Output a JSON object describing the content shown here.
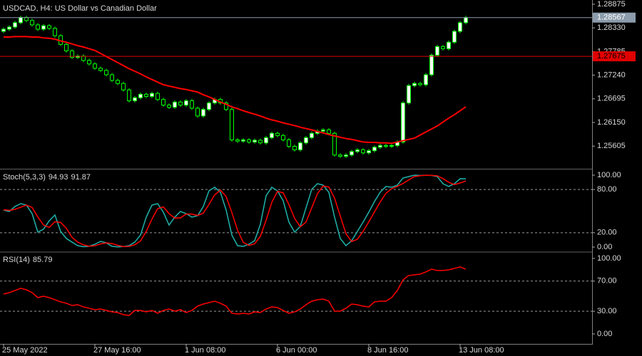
{
  "chart_data": [
    {
      "type": "candlestick",
      "title": "USDCAD, H4:  US Dollar vs Canadian Dollar",
      "categories": [
        "25 May 2022",
        null,
        null,
        null,
        null,
        null,
        null,
        null,
        null,
        null,
        null,
        null,
        null,
        null,
        null,
        null,
        "27 May 16:00",
        null,
        null,
        null,
        null,
        null,
        null,
        null,
        null,
        null,
        null,
        null,
        null,
        null,
        null,
        null,
        "1 Jun 08:00",
        null,
        null,
        null,
        null,
        null,
        null,
        null,
        null,
        null,
        null,
        null,
        null,
        null,
        null,
        null,
        "6 Jun 00:00",
        null,
        null,
        null,
        null,
        null,
        null,
        null,
        null,
        null,
        null,
        null,
        null,
        null,
        null,
        null,
        "8 Jun 16:00",
        null,
        null,
        null,
        null,
        null,
        null,
        null,
        null,
        null,
        null,
        null,
        null,
        null,
        null,
        null,
        "13 Jun 08:00",
        null
      ],
      "open": [
        1.2825,
        1.283,
        1.2835,
        1.2845,
        1.2857,
        1.285,
        1.284,
        1.283,
        1.2838,
        1.2832,
        1.2815,
        1.2795,
        1.278,
        1.2765,
        1.2768,
        1.2758,
        1.275,
        1.274,
        1.2735,
        1.2725,
        1.2712,
        1.2705,
        1.269,
        1.2665,
        1.2672,
        1.268,
        1.2675,
        1.2682,
        1.2668,
        1.2655,
        1.265,
        1.2662,
        1.2655,
        1.2665,
        1.2648,
        1.263,
        1.2645,
        1.266,
        1.2668,
        1.266,
        1.2645,
        1.2575,
        1.2572,
        1.2575,
        1.257,
        1.2574,
        1.2568,
        1.258,
        1.259,
        1.2585,
        1.2575,
        1.256,
        1.2552,
        1.2568,
        1.258,
        1.259,
        1.2595,
        1.2598,
        1.259,
        1.254,
        1.2537,
        1.254,
        1.2548,
        1.2552,
        1.2545,
        1.255,
        1.2558,
        1.2562,
        1.256,
        1.2562,
        1.257,
        1.266,
        1.27,
        1.2705,
        1.2702,
        1.2725,
        1.277,
        1.279,
        1.2785,
        1.28,
        1.2825,
        1.2845
      ],
      "high": [
        1.2834,
        1.2839,
        1.2849,
        1.2861,
        1.2861,
        1.2854,
        1.2844,
        1.2842,
        1.2842,
        1.2836,
        1.2819,
        1.2799,
        1.2784,
        1.2772,
        1.2772,
        1.2762,
        1.2754,
        1.2744,
        1.2739,
        1.2729,
        1.2716,
        1.2709,
        1.2694,
        1.2676,
        1.2684,
        1.2684,
        1.2686,
        1.2686,
        1.2672,
        1.2659,
        1.2666,
        1.2666,
        1.2669,
        1.2669,
        1.2652,
        1.2649,
        1.2664,
        1.2672,
        1.2672,
        1.2664,
        1.2649,
        1.2579,
        1.2579,
        1.2579,
        1.2578,
        1.2578,
        1.2584,
        1.2594,
        1.2594,
        1.2589,
        1.2579,
        1.2564,
        1.2572,
        1.2584,
        1.2594,
        1.2599,
        1.2602,
        1.2602,
        1.2594,
        1.2544,
        1.2544,
        1.2552,
        1.2556,
        1.2556,
        1.2554,
        1.2562,
        1.2566,
        1.2566,
        1.2566,
        1.2574,
        1.2664,
        1.2704,
        1.2709,
        1.2709,
        1.2729,
        1.2774,
        1.2794,
        1.2794,
        1.2804,
        1.2829,
        1.2849,
        1.2861
      ],
      "low": [
        1.2821,
        1.2826,
        1.2831,
        1.2841,
        1.2846,
        1.2836,
        1.2826,
        1.2826,
        1.2828,
        1.2811,
        1.2791,
        1.2776,
        1.2761,
        1.2761,
        1.2754,
        1.2746,
        1.2736,
        1.2731,
        1.2721,
        1.2708,
        1.2701,
        1.2686,
        1.2661,
        1.2661,
        1.2668,
        1.2671,
        1.2671,
        1.2664,
        1.2651,
        1.2646,
        1.2646,
        1.2651,
        1.2651,
        1.2644,
        1.2626,
        1.2626,
        1.2641,
        1.2656,
        1.2656,
        1.2641,
        1.2571,
        1.2568,
        1.2568,
        1.2566,
        1.2566,
        1.2564,
        1.2564,
        1.2576,
        1.2581,
        1.2571,
        1.2556,
        1.2548,
        1.2548,
        1.2564,
        1.2576,
        1.2586,
        1.2591,
        1.2586,
        1.2536,
        1.2533,
        1.2533,
        1.2536,
        1.2544,
        1.2541,
        1.2541,
        1.2546,
        1.2554,
        1.2556,
        1.2556,
        1.2558,
        1.2566,
        1.2656,
        1.2696,
        1.2698,
        1.2698,
        1.2721,
        1.2766,
        1.2781,
        1.2781,
        1.2796,
        1.2821,
        1.2841
      ],
      "close": [
        1.283,
        1.2835,
        1.2845,
        1.2857,
        1.285,
        1.284,
        1.283,
        1.2838,
        1.2832,
        1.2815,
        1.2795,
        1.278,
        1.2765,
        1.2768,
        1.2758,
        1.275,
        1.274,
        1.2735,
        1.2725,
        1.2712,
        1.2705,
        1.269,
        1.2665,
        1.2672,
        1.268,
        1.2675,
        1.2682,
        1.2668,
        1.2655,
        1.265,
        1.2662,
        1.2655,
        1.2665,
        1.2648,
        1.263,
        1.2645,
        1.266,
        1.2668,
        1.266,
        1.2645,
        1.2575,
        1.2572,
        1.2575,
        1.257,
        1.2574,
        1.2568,
        1.258,
        1.259,
        1.2585,
        1.2575,
        1.256,
        1.2552,
        1.2568,
        1.258,
        1.259,
        1.2595,
        1.2598,
        1.259,
        1.254,
        1.2537,
        1.254,
        1.2548,
        1.2552,
        1.2545,
        1.255,
        1.2558,
        1.2562,
        1.256,
        1.2562,
        1.257,
        1.266,
        1.27,
        1.2705,
        1.2702,
        1.2725,
        1.277,
        1.279,
        1.2785,
        1.28,
        1.2825,
        1.2845,
        1.28567
      ],
      "up_color": "#ffffff",
      "down_color": "#000000",
      "wick_color": "#00ff00",
      "last_price_color": "#8c9cac",
      "series": [
        {
          "color": "#ff0000",
          "values": [
            1.2812,
            1.2812,
            1.2813,
            1.2813,
            1.2813,
            1.2812,
            1.2812,
            1.281,
            1.2809,
            1.2807,
            1.2803,
            1.28,
            1.2796,
            1.2792,
            1.2789,
            1.2785,
            1.2781,
            1.2774,
            1.2767,
            1.276,
            1.2753,
            1.2746,
            1.2739,
            1.2733,
            1.2727,
            1.272,
            1.2714,
            1.2708,
            1.2702,
            1.2699,
            1.2696,
            1.2693,
            1.2691,
            1.2688,
            1.2685,
            1.2679,
            1.2674,
            1.2668,
            1.2662,
            1.2657,
            1.2651,
            1.2647,
            1.2642,
            1.2638,
            1.2634,
            1.263,
            1.2625,
            1.2621,
            1.2618,
            1.2614,
            1.2611,
            1.2608,
            1.2604,
            1.2601,
            1.2598,
            1.2594,
            1.2591,
            1.2587,
            1.2584,
            1.2581,
            1.2578,
            1.2576,
            1.2573,
            1.257,
            1.2569,
            1.2569,
            1.2568,
            1.2568,
            1.2567,
            1.257,
            1.2573,
            1.2576,
            1.2579,
            1.2586,
            1.2593,
            1.26,
            1.2607,
            1.2616,
            1.2625,
            1.2633,
            1.2642,
            1.2651
          ]
        }
      ],
      "level_lines": [
        {
          "value": 1.27675,
          "color": "#e00000"
        }
      ],
      "ylim": [
        1.251,
        1.2894
      ],
      "yticks": [
        1.25605,
        {
          "value": 1.2615,
          "label": "1.26150"
        },
        1.26695,
        {
          "value": 1.2724,
          "label": "1.27240"
        },
        1.27785,
        {
          "value": 1.2833,
          "label": "1.28330"
        },
        1.28875
      ]
    },
    {
      "type": "line",
      "title": "Stoch(5,3,3)",
      "series": [
        {
          "color": "#20b2aa",
          "values": [
            51.5,
            49.5,
            56.4,
            60.4,
            58.4,
            46.5,
            20.8,
            24.8,
            36.6,
            44.6,
            21.8,
            11.9,
            6.9,
            2.0,
            0.5,
            1.2,
            4.0,
            7.9,
            5.9,
            1.0,
            0.3,
            0.8,
            2.0,
            6.9,
            16.8,
            41.6,
            58.4,
            60.4,
            48.5,
            30.7,
            41.6,
            49.5,
            46.5,
            41.6,
            43.6,
            56.4,
            78.2,
            83.2,
            76.2,
            51.5,
            16.8,
            2.0,
            1.0,
            4.0,
            8.9,
            31.7,
            71.3,
            83.2,
            78.2,
            64.4,
            34.7,
            20.8,
            28.7,
            54.5,
            80.2,
            88.1,
            86.1,
            76.2,
            41.6,
            11.9,
            2.0,
            8.9,
            21.8,
            34.7,
            48.5,
            63.4,
            76.2,
            84.2,
            83.2,
            86.1,
            96.0,
            98.0,
            100.0,
            99.5,
            99.8,
            99.6,
            98.0,
            88.1,
            84.2,
            88.1,
            95.0,
            94.93
          ]
        },
        {
          "color": "#ff0000",
          "values": [
            52.0,
            51.0,
            52.5,
            55.4,
            58.4,
            55.1,
            41.9,
            30.7,
            27.4,
            35.3,
            34.3,
            26.1,
            13.5,
            6.9,
            3.1,
            1.2,
            1.9,
            4.4,
            5.9,
            4.9,
            2.4,
            0.7,
            1.0,
            3.2,
            8.6,
            21.8,
            38.9,
            53.5,
            55.8,
            46.5,
            40.3,
            40.6,
            45.9,
            45.9,
            43.9,
            47.2,
            59.4,
            72.6,
            79.2,
            70.3,
            48.2,
            23.4,
            6.6,
            2.3,
            4.6,
            14.9,
            37.3,
            62.1,
            77.6,
            75.3,
            59.1,
            40.0,
            28.1,
            34.7,
            54.5,
            74.3,
            84.8,
            83.5,
            68.0,
            43.2,
            18.5,
            7.6,
            10.9,
            21.8,
            35.0,
            48.9,
            62.7,
            74.6,
            81.2,
            84.5,
            88.4,
            93.4,
            98.0,
            99.2,
            99.8,
            99.6,
            99.1,
            95.2,
            90.1,
            86.8,
            89.1,
            91.87
          ]
        }
      ],
      "levels": [
        80,
        20
      ],
      "ylim": [
        -5.9,
        106.9
      ],
      "yticks": [
        {
          "value": 100,
          "label": "100.00"
        },
        {
          "value": 80,
          "label": "80.00"
        },
        {
          "value": 20,
          "label": "20.00"
        },
        {
          "value": 0,
          "label": "0.00"
        }
      ]
    },
    {
      "type": "line",
      "title": "RSI(14)",
      "series": [
        {
          "color": "#ff0000",
          "values": [
            52.8,
            54.7,
            57.5,
            60.4,
            58.5,
            54.7,
            48.1,
            50.0,
            48.1,
            45.3,
            42.5,
            40.6,
            37.7,
            38.7,
            35.8,
            34.0,
            32.1,
            33.0,
            31.1,
            29.2,
            28.3,
            25.5,
            24.5,
            31.1,
            31.1,
            29.2,
            31.1,
            27.4,
            31.1,
            33.0,
            30.2,
            32.1,
            28.3,
            31.1,
            36.8,
            39.6,
            41.5,
            43.4,
            40.6,
            36.8,
            27.4,
            26.4,
            27.4,
            26.4,
            29.2,
            28.3,
            33.0,
            35.8,
            34.9,
            31.1,
            27.4,
            29.2,
            33.0,
            38.7,
            43.4,
            45.3,
            46.2,
            43.4,
            30.2,
            30.2,
            34.0,
            39.6,
            38.7,
            36.8,
            35.8,
            42.5,
            43.4,
            43.4,
            48.1,
            57.5,
            71.7,
            77.4,
            78.3,
            79.2,
            82.1,
            85.8,
            84.0,
            84.0,
            84.9,
            86.8,
            88.7,
            85.79
          ]
        }
      ],
      "levels": [
        70,
        30
      ],
      "ylim": [
        -13.2,
        107.5
      ],
      "yticks": [
        {
          "value": 100,
          "label": "100.00"
        },
        {
          "value": 70,
          "label": "70.00"
        },
        {
          "value": 30,
          "label": "30.00"
        },
        {
          "value": 0,
          "label": "0.00"
        }
      ]
    }
  ]
}
